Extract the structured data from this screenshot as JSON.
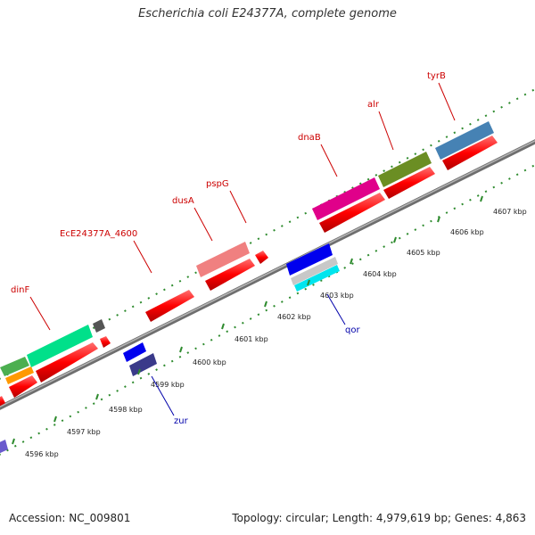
{
  "title": "Escherichia coli E24377A, complete genome",
  "footer": {
    "accession": "Accession: NC_009801",
    "summary": "Topology: circular; Length: 4,979,619 bp; Genes: 4,863"
  },
  "scale": {
    "ticks": [
      {
        "pos": 4596,
        "label": "4596 kbp"
      },
      {
        "pos": 4597,
        "label": "4597 kbp"
      },
      {
        "pos": 4598,
        "label": "4598 kbp"
      },
      {
        "pos": 4599,
        "label": "4599 kbp"
      },
      {
        "pos": 4600,
        "label": "4600 kbp"
      },
      {
        "pos": 4601,
        "label": "4601 kbp"
      },
      {
        "pos": 4602,
        "label": "4602 kbp"
      },
      {
        "pos": 4603,
        "label": "4603 kbp"
      },
      {
        "pos": 4604,
        "label": "4604 kbp"
      },
      {
        "pos": 4605,
        "label": "4605 kbp"
      },
      {
        "pos": 4606,
        "label": "4606 kbp"
      },
      {
        "pos": 4607,
        "label": "4607 kbp"
      }
    ]
  },
  "gene_labels": [
    {
      "name": "dinF",
      "strand": "forward"
    },
    {
      "name": "EcE24377A_4600",
      "strand": "forward"
    },
    {
      "name": "dusA",
      "strand": "forward"
    },
    {
      "name": "pspG",
      "strand": "forward"
    },
    {
      "name": "dnaB",
      "strand": "forward"
    },
    {
      "name": "alr",
      "strand": "forward"
    },
    {
      "name": "tyrB",
      "strand": "forward"
    },
    {
      "name": "zur",
      "strand": "reverse"
    },
    {
      "name": "qor",
      "strand": "reverse"
    }
  ],
  "colors": {
    "cds": "#ff0000",
    "backbone": "#888888",
    "tick": "#2e8b2e",
    "forward_label": "#cc0000",
    "reverse_label": "#0000aa"
  }
}
